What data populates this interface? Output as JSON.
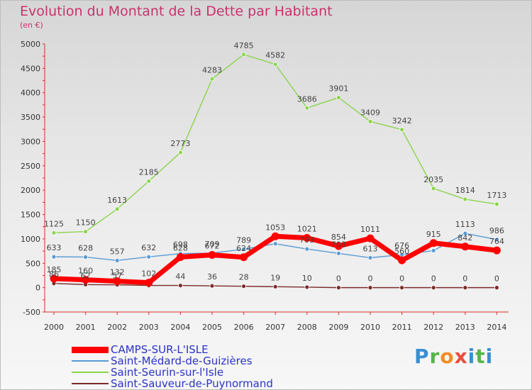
{
  "title": "Evolution du Montant de la Dette par Habitant",
  "unit": "(en €)",
  "logo_text": "Proxiti",
  "chart_data": {
    "type": "line",
    "title": "Evolution du Montant de la Dette par Habitant",
    "ylabel": "(en €)",
    "xlabel": "",
    "ylim": [
      -500,
      5000
    ],
    "grid": false,
    "legend_position": "bottom-left",
    "x": [
      "2000",
      "2001",
      "2002",
      "2003",
      "2004",
      "2005",
      "2006",
      "2007",
      "2008",
      "2009",
      "2010",
      "2011",
      "2012",
      "2013",
      "2014"
    ],
    "yticks": [
      "-500",
      "0",
      "500",
      "1000",
      "1500",
      "2000",
      "2500",
      "3000",
      "3500",
      "4000",
      "4500",
      "5000"
    ],
    "series": [
      {
        "name": "CAMPS-SUR-L'ISLE",
        "color": "#ff0000",
        "values": [
          185,
          160,
          132,
          102,
          628,
          672,
          624,
          1053,
          1021,
          854,
          1011,
          560,
          915,
          842,
          764
        ],
        "labels": [
          "185",
          "160",
          "132",
          "102",
          "628",
          "672",
          "624",
          "1053",
          "1021",
          "854",
          "1011",
          "560",
          "915",
          "842",
          "764"
        ]
      },
      {
        "name": "Saint-Médard-de-Guizières",
        "color": "#5a9bd5",
        "values": [
          633,
          628,
          557,
          632,
          698,
          709,
          789,
          900,
          793,
          703,
          613,
          676,
          760,
          1113,
          986
        ],
        "labels": [
          "633",
          "628",
          "557",
          "632",
          "698",
          "709",
          "789",
          "",
          "793",
          "703",
          "613",
          "676",
          "",
          "1113",
          "986"
        ]
      },
      {
        "name": "Saint-Seurin-sur-l'Isle",
        "color": "#8bd44d",
        "values": [
          1125,
          1150,
          1613,
          2185,
          2773,
          4283,
          4785,
          4582,
          3686,
          3901,
          3409,
          3242,
          2035,
          1814,
          1713
        ],
        "labels": [
          "1125",
          "1150",
          "1613",
          "2185",
          "2773",
          "4283",
          "4785",
          "4582",
          "3686",
          "3901",
          "3409",
          "3242",
          "2035",
          "1814",
          "1713"
        ]
      },
      {
        "name": "Saint-Sauveur-de-Puynormand",
        "color": "#7a2b2b",
        "values": [
          86,
          62,
          57,
          44,
          44,
          36,
          28,
          19,
          10,
          0,
          0,
          0,
          0,
          0,
          0
        ],
        "labels": [
          "86",
          "62",
          "57",
          "",
          "44",
          "36",
          "28",
          "19",
          "10",
          "0",
          "0",
          "0",
          "0",
          "0",
          "0"
        ]
      }
    ]
  }
}
